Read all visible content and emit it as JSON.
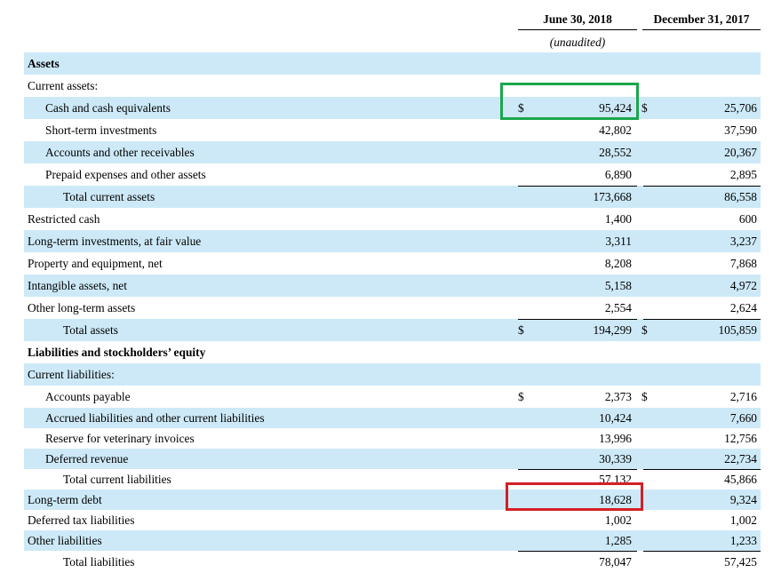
{
  "header": {
    "col1": "June 30, 2018",
    "col1_sub": "(unaudited)",
    "col2": "December 31, 2017"
  },
  "rows": [
    {
      "label": "Assets",
      "bold": true,
      "shaded": true
    },
    {
      "label": "Current assets:"
    },
    {
      "label": "Cash and cash equivalents",
      "indent": 1,
      "shaded": true,
      "cur1": "$",
      "v1": "95,424",
      "cur2": "$",
      "v2": "25,706"
    },
    {
      "label": "Short-term investments",
      "indent": 1,
      "v1": "42,802",
      "v2": "37,590"
    },
    {
      "label": "Accounts and other receivables",
      "indent": 1,
      "shaded": true,
      "v1": "28,552",
      "v2": "20,367"
    },
    {
      "label": "Prepaid expenses and other assets",
      "indent": 1,
      "v1": "6,890",
      "v2": "2,895"
    },
    {
      "label": "Total current assets",
      "indent": 2,
      "shaded": true,
      "rule": true,
      "v1": "173,668",
      "v2": "86,558"
    },
    {
      "label": "Restricted cash",
      "v1": "1,400",
      "v2": "600"
    },
    {
      "label": "Long-term investments, at fair value",
      "shaded": true,
      "v1": "3,311",
      "v2": "3,237"
    },
    {
      "label": "Property and equipment, net",
      "v1": "8,208",
      "v2": "7,868"
    },
    {
      "label": "Intangible assets, net",
      "shaded": true,
      "v1": "5,158",
      "v2": "4,972"
    },
    {
      "label": "Other long-term assets",
      "v1": "2,554",
      "v2": "2,624"
    },
    {
      "label": "Total assets",
      "indent": 2,
      "shaded": true,
      "rule": true,
      "cur1": "$",
      "v1": "194,299",
      "cur2": "$",
      "v2": "105,859"
    },
    {
      "label": "Liabilities and stockholders’ equity",
      "bold": true
    },
    {
      "label": "Current liabilities:",
      "shaded": true
    },
    {
      "label": "Accounts payable",
      "indent": 1,
      "cur1": "$",
      "v1": "2,373",
      "cur2": "$",
      "v2": "2,716"
    },
    {
      "label": "Accrued liabilities and other current liabilities",
      "indent": 1,
      "shaded": true,
      "v1": "10,424",
      "v2": "7,660"
    },
    {
      "label": "Reserve for veterinary invoices",
      "indent": 1,
      "v1": "13,996",
      "v2": "12,756"
    },
    {
      "label": "Deferred revenue",
      "indent": 1,
      "shaded": true,
      "v1": "30,339",
      "v2": "22,734"
    },
    {
      "label": "Total current liabilities",
      "indent": 2,
      "rule": true,
      "v1": "57,132",
      "v2": "45,866"
    },
    {
      "label": "Long-term debt",
      "shaded": true,
      "v1": "18,628",
      "v2": "9,324"
    },
    {
      "label": "Deferred tax liabilities",
      "v1": "1,002",
      "v2": "1,002"
    },
    {
      "label": "Other liabilities",
      "shaded": true,
      "v1": "1,285",
      "v2": "1,233"
    },
    {
      "label": "Total liabilities",
      "indent": 2,
      "rule": true,
      "v1": "78,047",
      "v2": "57,425"
    }
  ],
  "highlights": {
    "green": "#1aa64b",
    "red": "#d32027"
  },
  "colors": {
    "shade": "#cde9f7"
  }
}
